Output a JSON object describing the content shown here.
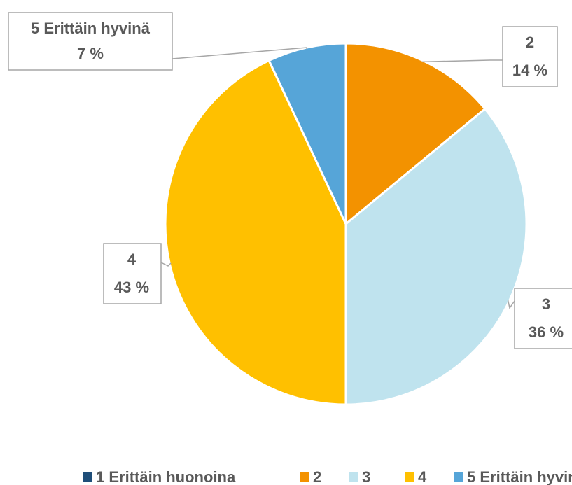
{
  "chart_data": {
    "type": "pie",
    "categories": [
      "1 Erittäin huonoina",
      "2",
      "3",
      "4",
      "5 Erittäin hyvinä"
    ],
    "values": [
      0,
      14,
      36,
      43,
      7
    ],
    "value_labels": [
      null,
      "14 %",
      "36 %",
      "43 %",
      "7 %"
    ],
    "colors": [
      "#1f4e79",
      "#f39200",
      "#bfe3ee",
      "#ffc000",
      "#56a5d8"
    ],
    "legend": "bottom"
  }
}
